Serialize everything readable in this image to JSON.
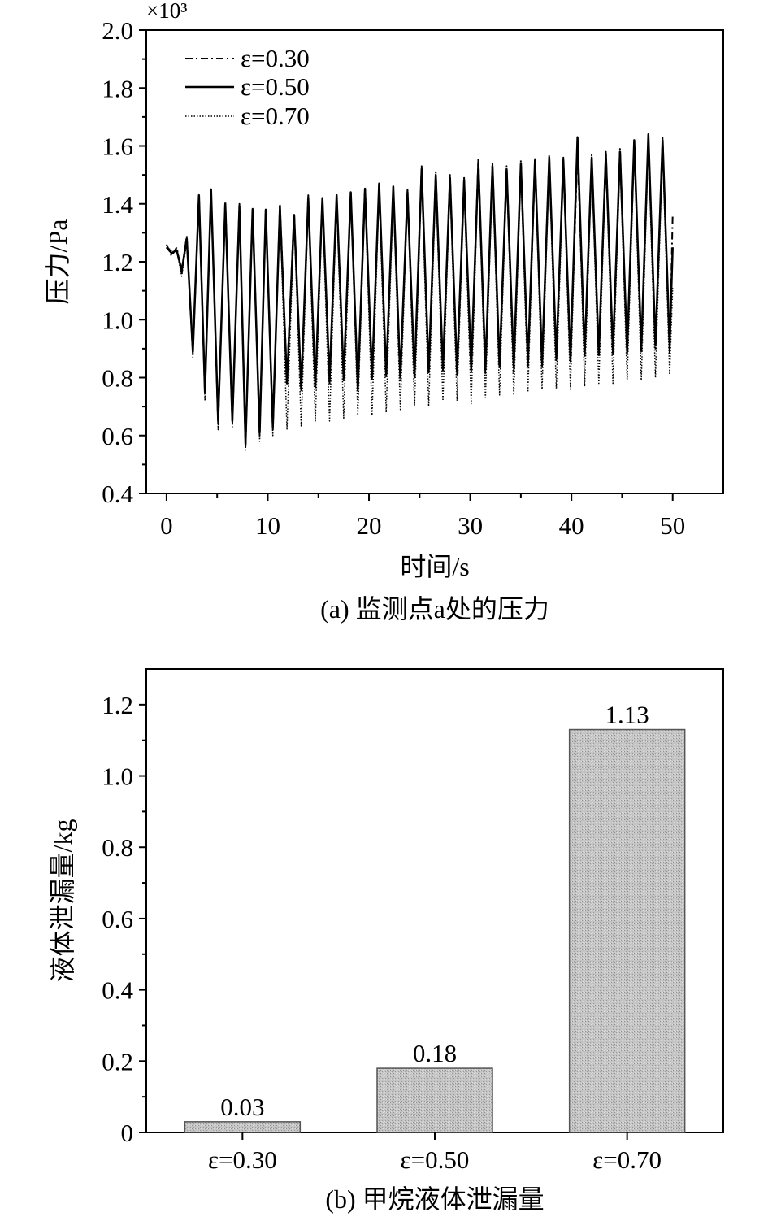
{
  "chart_data": [
    {
      "type": "line",
      "caption": "(a) 监测点a处的压力",
      "xlabel": "时间/s",
      "ylabel": "压力/Pa",
      "y_multiplier": "×10³",
      "xlim": [
        -2,
        55
      ],
      "ylim": [
        0.4,
        2.0
      ],
      "x_ticks": [
        "0",
        "10",
        "20",
        "30",
        "40",
        "50"
      ],
      "y_ticks": [
        "0.4",
        "0.6",
        "0.8",
        "1.0",
        "1.2",
        "1.4",
        "1.6",
        "1.8",
        "2.0"
      ],
      "legend_position": "top-left",
      "series": [
        {
          "name": "ε=0.30",
          "style": "dash-dot",
          "color": "#000000",
          "x": [
            0,
            0.5,
            1,
            1.5,
            2,
            2.6,
            3.2,
            3.8,
            4.4,
            5.1,
            5.8,
            6.5,
            7.2,
            7.8,
            8.5,
            9.2,
            9.8,
            10.5,
            11.2,
            11.9,
            12.6,
            13.3,
            14,
            14.7,
            15.4,
            16.1,
            16.8,
            17.5,
            18.2,
            18.9,
            19.6,
            20.3,
            21,
            21.7,
            22.4,
            23.1,
            23.8,
            24.5,
            25.2,
            25.9,
            26.6,
            27.3,
            28,
            28.7,
            29.4,
            30.1,
            30.8,
            31.5,
            32.2,
            32.9,
            33.6,
            34.3,
            35,
            35.7,
            36.4,
            37.1,
            37.8,
            38.5,
            39.2,
            39.9,
            40.6,
            41.3,
            42,
            42.7,
            43.4,
            44.1,
            44.8,
            45.5,
            46.2,
            46.9,
            47.6,
            48.3,
            49,
            49.7,
            50
          ],
          "y": [
            1.26,
            1.22,
            1.25,
            1.16,
            1.29,
            0.88,
            1.43,
            0.74,
            1.45,
            0.64,
            1.41,
            0.64,
            1.4,
            0.56,
            1.39,
            0.6,
            1.38,
            0.62,
            1.4,
            0.8,
            1.37,
            0.75,
            1.43,
            0.76,
            1.42,
            0.78,
            1.43,
            0.79,
            1.44,
            0.75,
            1.46,
            0.79,
            1.47,
            0.8,
            1.46,
            0.79,
            1.45,
            0.8,
            1.53,
            0.81,
            1.51,
            0.82,
            1.5,
            0.81,
            1.49,
            0.82,
            1.56,
            0.81,
            1.54,
            0.83,
            1.53,
            0.82,
            1.55,
            0.84,
            1.56,
            0.84,
            1.57,
            0.86,
            1.56,
            0.85,
            1.58,
            0.87,
            1.57,
            0.87,
            1.58,
            0.88,
            1.59,
            0.88,
            1.61,
            0.89,
            1.63,
            0.9,
            1.63,
            0.88,
            1.36
          ]
        },
        {
          "name": "ε=0.50",
          "style": "solid",
          "color": "#000000",
          "x": [
            0,
            0.5,
            1,
            1.5,
            2,
            2.6,
            3.2,
            3.8,
            4.4,
            5.1,
            5.8,
            6.5,
            7.2,
            7.8,
            8.5,
            9.2,
            9.8,
            10.5,
            11.2,
            11.9,
            12.6,
            13.3,
            14,
            14.7,
            15.4,
            16.1,
            16.8,
            17.5,
            18.2,
            18.9,
            19.6,
            20.3,
            21,
            21.7,
            22.4,
            23.1,
            23.8,
            24.5,
            25.2,
            25.9,
            26.6,
            27.3,
            28,
            28.7,
            29.4,
            30.1,
            30.8,
            31.5,
            32.2,
            32.9,
            33.6,
            34.3,
            35,
            35.7,
            36.4,
            37.1,
            37.8,
            38.5,
            39.2,
            39.9,
            40.6,
            41.3,
            42,
            42.7,
            43.4,
            44.1,
            44.8,
            45.5,
            46.2,
            46.9,
            47.6,
            48.3,
            49,
            49.7,
            50
          ],
          "y": [
            1.25,
            1.23,
            1.24,
            1.17,
            1.28,
            0.89,
            1.43,
            0.75,
            1.45,
            0.65,
            1.4,
            0.65,
            1.39,
            0.57,
            1.38,
            0.61,
            1.38,
            0.63,
            1.39,
            0.78,
            1.36,
            0.76,
            1.42,
            0.77,
            1.42,
            0.79,
            1.43,
            0.8,
            1.44,
            0.76,
            1.45,
            0.8,
            1.47,
            0.81,
            1.46,
            0.8,
            1.44,
            0.81,
            1.52,
            0.82,
            1.5,
            0.83,
            1.49,
            0.82,
            1.48,
            0.83,
            1.54,
            0.83,
            1.53,
            0.84,
            1.52,
            0.84,
            1.54,
            0.85,
            1.55,
            0.85,
            1.56,
            0.87,
            1.55,
            0.86,
            1.63,
            0.88,
            1.56,
            0.88,
            1.57,
            0.89,
            1.58,
            0.89,
            1.62,
            0.9,
            1.64,
            0.91,
            1.62,
            0.91,
            1.25
          ]
        },
        {
          "name": "ε=0.70",
          "style": "dotted",
          "color": "#000000",
          "x": [
            0,
            0.5,
            1,
            1.5,
            2,
            2.6,
            3.2,
            3.8,
            4.4,
            5.1,
            5.8,
            6.5,
            7.2,
            7.8,
            8.5,
            9.2,
            9.8,
            10.5,
            11.2,
            11.9,
            12.6,
            13.3,
            14,
            14.7,
            15.4,
            16.1,
            16.8,
            17.5,
            18.2,
            18.9,
            19.6,
            20.3,
            21,
            21.7,
            22.4,
            23.1,
            23.8,
            24.5,
            25.2,
            25.9,
            26.6,
            27.3,
            28,
            28.7,
            29.4,
            30.1,
            30.8,
            31.5,
            32.2,
            32.9,
            33.6,
            34.3,
            35,
            35.7,
            36.4,
            37.1,
            37.8,
            38.5,
            39.2,
            39.9,
            40.6,
            41.3,
            42,
            42.7,
            43.4,
            44.1,
            44.8,
            45.5,
            46.2,
            46.9,
            47.6,
            48.3,
            49,
            49.7,
            50
          ],
          "y": [
            1.25,
            1.24,
            1.24,
            1.15,
            1.27,
            0.87,
            1.42,
            0.72,
            1.44,
            0.62,
            1.4,
            0.63,
            1.39,
            0.55,
            1.38,
            0.58,
            1.37,
            0.6,
            1.39,
            0.62,
            1.35,
            0.63,
            1.41,
            0.65,
            1.41,
            0.65,
            1.42,
            0.66,
            1.43,
            0.67,
            1.44,
            0.67,
            1.45,
            0.68,
            1.44,
            0.69,
            1.43,
            0.7,
            1.5,
            0.7,
            1.48,
            0.72,
            1.47,
            0.72,
            1.46,
            0.71,
            1.53,
            0.73,
            1.51,
            0.74,
            1.5,
            0.74,
            1.52,
            0.75,
            1.53,
            0.76,
            1.54,
            0.76,
            1.53,
            0.76,
            1.61,
            0.77,
            1.54,
            0.78,
            1.55,
            0.78,
            1.56,
            0.79,
            1.59,
            0.79,
            1.61,
            0.8,
            1.59,
            0.81,
            1.11
          ]
        }
      ]
    },
    {
      "type": "bar",
      "caption": "(b) 甲烷液体泄漏量",
      "xlabel": "",
      "ylabel": "液体泄漏量/kg",
      "ylim": [
        0,
        1.3
      ],
      "y_ticks": [
        "0",
        "0.2",
        "0.4",
        "0.6",
        "0.8",
        "1.0",
        "1.2"
      ],
      "categories": [
        "ε=0.30",
        "ε=0.50",
        "ε=0.70"
      ],
      "values": [
        0.03,
        0.18,
        1.13
      ],
      "value_labels": [
        "0.03",
        "0.18",
        "1.13"
      ],
      "bar_color": "#bdbdbd"
    }
  ]
}
